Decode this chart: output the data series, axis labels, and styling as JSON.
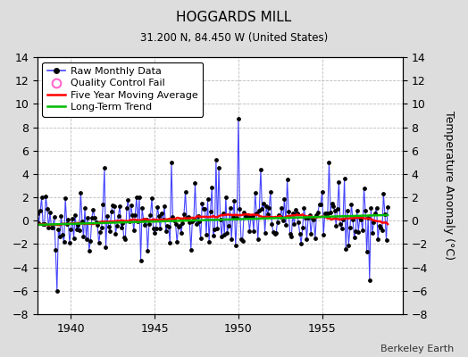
{
  "title": "HOGGARDS MILL",
  "subtitle": "31.200 N, 84.450 W (United States)",
  "ylabel": "Temperature Anomaly (°C)",
  "watermark": "Berkeley Earth",
  "xlim": [
    1938.0,
    1959.8
  ],
  "ylim": [
    -8,
    14
  ],
  "yticks": [
    -8,
    -6,
    -4,
    -2,
    0,
    2,
    4,
    6,
    8,
    10,
    12,
    14
  ],
  "xticks": [
    1940,
    1945,
    1950,
    1955
  ],
  "bg_color": "#dddddd",
  "plot_bg_color": "#ffffff",
  "raw_color": "#4444ff",
  "raw_marker_color": "#000000",
  "ma_color": "#ff0000",
  "trend_color": "#00bb00",
  "qc_color": "#ff66cc",
  "start_year": 1938,
  "months": 252,
  "seed": 42
}
